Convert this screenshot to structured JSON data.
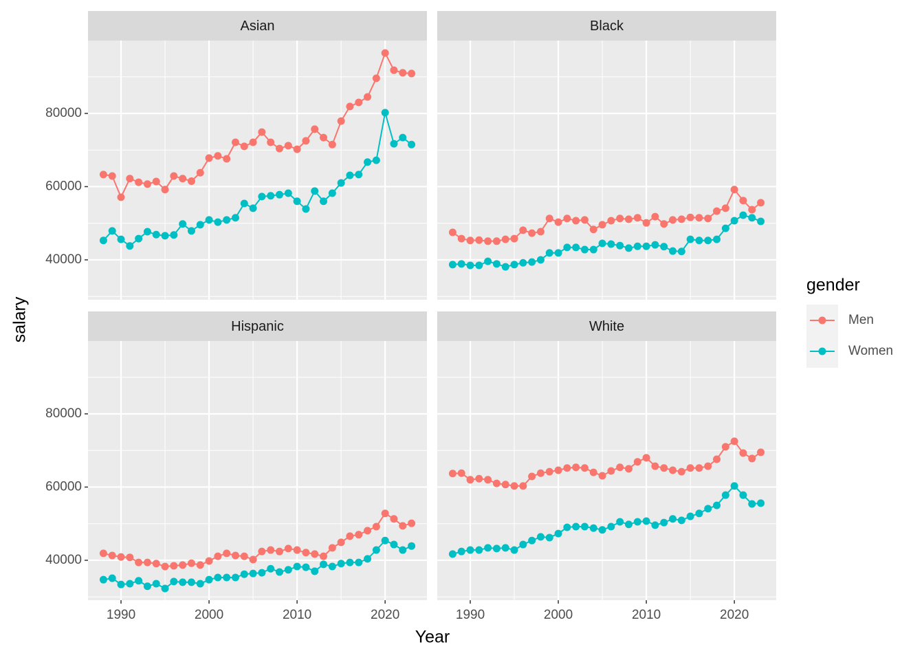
{
  "x_label": "Year",
  "y_label": "salary",
  "legend": {
    "title": "gender"
  },
  "chart_data": [
    {
      "type": "line",
      "title": "Asian",
      "x": [
        1988,
        1989,
        1990,
        1991,
        1992,
        1993,
        1994,
        1995,
        1996,
        1997,
        1998,
        1999,
        2000,
        2001,
        2002,
        2003,
        2004,
        2005,
        2006,
        2007,
        2008,
        2009,
        2010,
        2011,
        2012,
        2013,
        2014,
        2015,
        2016,
        2017,
        2018,
        2019,
        2020,
        2021,
        2022,
        2023
      ],
      "series": [
        {
          "name": "Men",
          "color": "#F8766D",
          "values": [
            63300,
            62900,
            57100,
            62200,
            61200,
            60700,
            61400,
            59200,
            62900,
            62200,
            61500,
            63800,
            67800,
            68400,
            67600,
            72100,
            71000,
            72100,
            74900,
            72100,
            70400,
            71200,
            70200,
            72500,
            75700,
            73400,
            71500,
            77900,
            81900,
            83000,
            84500,
            89600,
            96500,
            91800,
            91100,
            90900
          ]
        },
        {
          "name": "Women",
          "color": "#00BFC4",
          "values": [
            45300,
            47900,
            45600,
            43800,
            45800,
            47700,
            46900,
            46600,
            46800,
            49800,
            47900,
            49600,
            50900,
            50300,
            50900,
            51500,
            55400,
            54100,
            57300,
            57500,
            57800,
            58200,
            56000,
            53900,
            58800,
            56000,
            58200,
            61000,
            63100,
            63300,
            66700,
            67200,
            80200,
            71700,
            73400,
            71500
          ]
        }
      ],
      "xlim": [
        1986.25,
        2024.75
      ],
      "ylim": [
        29100,
        99900
      ],
      "xticks": [
        1990,
        2000,
        2010,
        2020
      ],
      "yticks": [
        40000,
        60000,
        80000
      ]
    },
    {
      "type": "line",
      "title": "Black",
      "x": [
        1988,
        1989,
        1990,
        1991,
        1992,
        1993,
        1994,
        1995,
        1996,
        1997,
        1998,
        1999,
        2000,
        2001,
        2002,
        2003,
        2004,
        2005,
        2006,
        2007,
        2008,
        2009,
        2010,
        2011,
        2012,
        2013,
        2014,
        2015,
        2016,
        2017,
        2018,
        2019,
        2020,
        2021,
        2022,
        2023
      ],
      "series": [
        {
          "name": "Men",
          "color": "#F8766D",
          "values": [
            47500,
            45800,
            45300,
            45400,
            45100,
            45100,
            45600,
            45800,
            48100,
            47300,
            47700,
            51300,
            50300,
            51300,
            50700,
            50900,
            48300,
            49600,
            50700,
            51300,
            51100,
            51500,
            50100,
            51800,
            49800,
            50900,
            51100,
            51600,
            51500,
            51300,
            53300,
            54100,
            59200,
            56200,
            53700,
            55600
          ]
        },
        {
          "name": "Women",
          "color": "#00BFC4",
          "values": [
            38700,
            38900,
            38500,
            38500,
            39600,
            38900,
            38100,
            38700,
            39200,
            39400,
            40000,
            41900,
            41900,
            43400,
            43400,
            42800,
            42800,
            44500,
            44300,
            43900,
            43200,
            43700,
            43700,
            44100,
            43600,
            42400,
            42300,
            45600,
            45300,
            45300,
            45600,
            48600,
            50700,
            52200,
            51500,
            50500
          ]
        }
      ],
      "xlim": [
        1986.25,
        2024.75
      ],
      "ylim": [
        29100,
        99900
      ],
      "xticks": [
        1990,
        2000,
        2010,
        2020
      ],
      "yticks": [
        40000,
        60000,
        80000
      ]
    },
    {
      "type": "line",
      "title": "Hispanic",
      "x": [
        1988,
        1989,
        1990,
        1991,
        1992,
        1993,
        1994,
        1995,
        1996,
        1997,
        1998,
        1999,
        2000,
        2001,
        2002,
        2003,
        2004,
        2005,
        2006,
        2007,
        2008,
        2009,
        2010,
        2011,
        2012,
        2013,
        2014,
        2015,
        2016,
        2017,
        2018,
        2019,
        2020,
        2021,
        2022,
        2023
      ],
      "series": [
        {
          "name": "Men",
          "color": "#F8766D",
          "values": [
            41900,
            41300,
            40900,
            40800,
            39400,
            39400,
            39100,
            38300,
            38500,
            38700,
            39200,
            38700,
            39800,
            41100,
            41900,
            41300,
            41100,
            40200,
            42400,
            42800,
            42400,
            43200,
            42800,
            42100,
            41700,
            41100,
            43400,
            44900,
            46600,
            47000,
            48100,
            49200,
            52800,
            51300,
            49400,
            50100
          ]
        },
        {
          "name": "Women",
          "color": "#00BFC4",
          "values": [
            34700,
            35100,
            33400,
            33600,
            34400,
            32900,
            33600,
            32300,
            34200,
            34000,
            34000,
            33600,
            34700,
            35300,
            35300,
            35300,
            36200,
            36400,
            36600,
            37700,
            36800,
            37400,
            38300,
            38100,
            37000,
            38900,
            38300,
            39100,
            39400,
            39400,
            40400,
            42800,
            45400,
            44300,
            42800,
            43900
          ]
        }
      ],
      "xlim": [
        1986.25,
        2024.75
      ],
      "ylim": [
        29100,
        99900
      ],
      "xticks": [
        1990,
        2000,
        2010,
        2020
      ],
      "yticks": [
        40000,
        60000,
        80000
      ]
    },
    {
      "type": "line",
      "title": "White",
      "x": [
        1988,
        1989,
        1990,
        1991,
        1992,
        1993,
        1994,
        1995,
        1996,
        1997,
        1998,
        1999,
        2000,
        2001,
        2002,
        2003,
        2004,
        2005,
        2006,
        2007,
        2008,
        2009,
        2010,
        2011,
        2012,
        2013,
        2014,
        2015,
        2016,
        2017,
        2018,
        2019,
        2020,
        2021,
        2022,
        2023
      ],
      "series": [
        {
          "name": "Men",
          "color": "#F8766D",
          "values": [
            63700,
            63800,
            62000,
            62300,
            62000,
            61000,
            60700,
            60300,
            60300,
            62900,
            63800,
            64200,
            64600,
            65200,
            65400,
            65200,
            64000,
            63100,
            64400,
            65400,
            65000,
            66900,
            68000,
            65700,
            65200,
            64600,
            64200,
            65200,
            65200,
            65700,
            67600,
            71000,
            72500,
            69300,
            67800,
            69500
          ]
        },
        {
          "name": "Women",
          "color": "#00BFC4",
          "values": [
            41700,
            42400,
            42800,
            42800,
            43400,
            43200,
            43400,
            42800,
            44300,
            45400,
            46400,
            46200,
            47300,
            49000,
            49200,
            49200,
            48800,
            48300,
            49200,
            50500,
            49800,
            50500,
            50700,
            49600,
            50300,
            51300,
            50900,
            52000,
            52800,
            54100,
            55000,
            57800,
            60300,
            57800,
            55400,
            55600
          ]
        }
      ],
      "xlim": [
        1986.25,
        2024.75
      ],
      "ylim": [
        29100,
        99900
      ],
      "xticks": [
        1990,
        2000,
        2010,
        2020
      ],
      "yticks": [
        40000,
        60000,
        80000
      ]
    }
  ]
}
